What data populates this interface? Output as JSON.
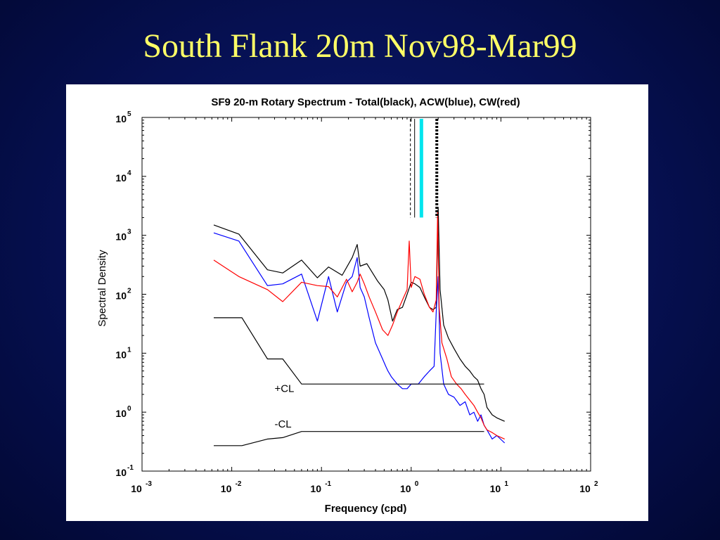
{
  "slide": {
    "title": "South Flank 20m Nov98-Mar99"
  },
  "chart_data": {
    "type": "line",
    "title": "SF9 20-m Rotary Spectrum - Total(black), ACW(blue), CW(red)",
    "xlabel": "Frequency (cpd)",
    "ylabel": "Spectral Density",
    "xscale": "log",
    "yscale": "log",
    "xlim": [
      0.001,
      100
    ],
    "ylim": [
      0.1,
      100000
    ],
    "xticks": [
      {
        "value": 0.001,
        "base": "10",
        "exp": "-3"
      },
      {
        "value": 0.01,
        "base": "10",
        "exp": "-2"
      },
      {
        "value": 0.1,
        "base": "10",
        "exp": "-1"
      },
      {
        "value": 1,
        "base": "10",
        "exp": "0"
      },
      {
        "value": 10,
        "base": "10",
        "exp": "1"
      },
      {
        "value": 100,
        "base": "10",
        "exp": "2"
      }
    ],
    "yticks": [
      {
        "value": 0.1,
        "base": "10",
        "exp": "-1"
      },
      {
        "value": 1,
        "base": "10",
        "exp": "0"
      },
      {
        "value": 10,
        "base": "10",
        "exp": "1"
      },
      {
        "value": 100,
        "base": "10",
        "exp": "2"
      },
      {
        "value": 1000,
        "base": "10",
        "exp": "3"
      },
      {
        "value": 10000,
        "base": "10",
        "exp": "4"
      },
      {
        "value": 100000,
        "base": "10",
        "exp": "5"
      }
    ],
    "grid": false,
    "series": [
      {
        "color": "#000000",
        "x": [
          0.0063,
          0.012,
          0.025,
          0.037,
          0.06,
          0.09,
          0.12,
          0.17,
          0.22,
          0.25,
          0.27,
          0.32,
          0.42,
          0.5,
          0.55,
          0.62,
          0.7,
          0.8,
          0.9,
          1.0,
          1.1,
          1.25,
          1.4,
          1.6,
          1.75,
          1.9,
          2.0,
          2.1,
          2.3,
          2.6,
          3.0,
          3.5,
          4.0,
          4.5,
          5.0,
          5.5,
          6.0,
          6.5,
          7.0,
          8.0,
          9.0,
          11.0
        ],
        "y": [
          1500,
          1050,
          260,
          230,
          380,
          190,
          290,
          210,
          420,
          700,
          300,
          330,
          170,
          120,
          80,
          35,
          55,
          60,
          100,
          160,
          150,
          130,
          90,
          60,
          55,
          60,
          3000,
          120,
          30,
          18,
          12,
          8,
          6,
          5,
          4,
          3.5,
          2.5,
          2,
          1.2,
          0.9,
          0.8,
          0.7
        ]
      },
      {
        "color": "#0000ff",
        "x": [
          0.0063,
          0.012,
          0.025,
          0.037,
          0.06,
          0.09,
          0.12,
          0.15,
          0.19,
          0.22,
          0.25,
          0.27,
          0.3,
          0.34,
          0.4,
          0.48,
          0.52,
          0.55,
          0.6,
          0.7,
          0.8,
          0.9,
          1.0,
          1.2,
          1.4,
          1.6,
          1.8,
          1.9,
          2.0,
          2.1,
          2.3,
          2.6,
          3.0,
          3.5,
          4.0,
          4.5,
          5.0,
          5.5,
          6.0,
          6.5,
          7.0,
          8.0,
          9.0,
          11.0
        ],
        "y": [
          1100,
          800,
          140,
          150,
          220,
          35,
          200,
          50,
          160,
          200,
          420,
          130,
          90,
          40,
          15,
          8,
          6,
          5,
          4,
          3,
          2.5,
          2.5,
          3,
          3,
          4,
          5,
          6,
          50,
          200,
          10,
          3,
          2,
          1.8,
          1.3,
          1.5,
          0.9,
          1,
          0.7,
          0.9,
          0.6,
          0.5,
          0.35,
          0.4,
          0.3
        ]
      },
      {
        "color": "#ff0000",
        "x": [
          0.0063,
          0.012,
          0.025,
          0.037,
          0.06,
          0.09,
          0.12,
          0.15,
          0.19,
          0.22,
          0.25,
          0.27,
          0.3,
          0.34,
          0.4,
          0.48,
          0.55,
          0.62,
          0.7,
          0.8,
          0.9,
          0.95,
          1.0,
          1.1,
          1.25,
          1.4,
          1.6,
          1.75,
          1.9,
          1.97,
          2.05,
          2.2,
          2.5,
          2.8,
          3.2,
          3.6,
          4.0,
          4.5,
          5.0,
          5.5,
          6.0,
          6.5,
          7.0,
          8.0,
          9.0,
          11.0
        ],
        "y": [
          380,
          200,
          120,
          75,
          160,
          140,
          135,
          90,
          180,
          110,
          160,
          220,
          150,
          90,
          50,
          25,
          20,
          30,
          50,
          80,
          120,
          800,
          130,
          200,
          180,
          100,
          60,
          50,
          80,
          2500,
          60,
          15,
          8,
          4,
          3,
          2.5,
          2,
          1.6,
          1.3,
          1,
          0.8,
          0.6,
          0.5,
          0.45,
          0.4,
          0.35
        ]
      },
      {
        "color": "#000000",
        "x": [
          0.0063,
          0.013,
          0.025,
          0.037,
          0.06,
          0.6,
          6.5
        ],
        "y": [
          40,
          40,
          8,
          8,
          3,
          3,
          3
        ]
      },
      {
        "color": "#000000",
        "x": [
          0.0063,
          0.013,
          0.025,
          0.037,
          0.06,
          0.6,
          6.5
        ],
        "y": [
          0.27,
          0.27,
          0.35,
          0.37,
          0.47,
          0.47,
          0.47
        ]
      }
    ],
    "annotations": [
      {
        "text": "+CL",
        "x": 0.03,
        "y": 2.2
      },
      {
        "text": "-CL",
        "x": 0.03,
        "y": 0.55
      }
    ],
    "markers": [
      {
        "type": "thin-dashed",
        "color": "#000000",
        "x": 0.98
      },
      {
        "type": "thick",
        "color": "#00e5ee",
        "x": 1.3
      },
      {
        "type": "thick-dotted",
        "color": "#000000",
        "x": 1.93
      }
    ]
  }
}
